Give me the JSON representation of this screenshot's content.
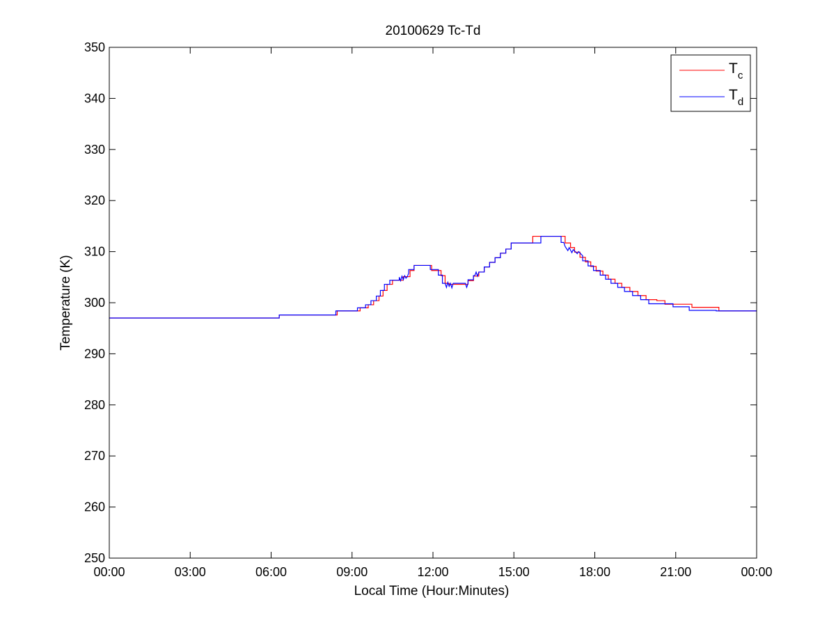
{
  "chart_data": {
    "type": "line",
    "title": "20100629 Tc-Td",
    "xlabel": "Local Time (Hour:Minutes)",
    "ylabel": "Temperature (K)",
    "xlim": [
      0,
      24
    ],
    "ylim": [
      250,
      350
    ],
    "x_unit": "hours (local time)",
    "xticks": [
      0,
      3,
      6,
      9,
      12,
      15,
      18,
      21,
      24
    ],
    "xtick_labels": [
      "00:00",
      "03:00",
      "06:00",
      "09:00",
      "12:00",
      "15:00",
      "18:00",
      "21:00",
      "00:00"
    ],
    "yticks": [
      250,
      260,
      270,
      280,
      290,
      300,
      310,
      320,
      330,
      340,
      350
    ],
    "ytick_labels": [
      "250",
      "260",
      "270",
      "280",
      "290",
      "300",
      "310",
      "320",
      "330",
      "340",
      "350"
    ],
    "grid": false,
    "legend_position": "top-right",
    "series": [
      {
        "name": "Tc",
        "name_main": "T",
        "name_sub": "c",
        "color": "#ff0000",
        "x": [
          0,
          6.3,
          6.3,
          8.45,
          8.45,
          9.3,
          9.3,
          9.6,
          9.6,
          9.8,
          9.8,
          10.0,
          10.0,
          10.15,
          10.15,
          10.3,
          10.3,
          10.5,
          10.5,
          10.9,
          10.9,
          11.15,
          11.15,
          11.3,
          11.3,
          11.95,
          11.95,
          12.3,
          12.3,
          12.45,
          12.45,
          12.6,
          12.6,
          13.3,
          13.3,
          13.5,
          13.5,
          13.7,
          13.7,
          13.9,
          13.9,
          14.1,
          14.1,
          14.3,
          14.3,
          14.5,
          14.5,
          14.7,
          14.7,
          14.9,
          14.9,
          15.0,
          15.0,
          15.7,
          15.7,
          16.2,
          16.2,
          16.9,
          16.9,
          17.1,
          17.1,
          17.25,
          17.25,
          17.45,
          17.45,
          17.65,
          17.65,
          17.85,
          17.85,
          18.05,
          18.05,
          18.3,
          18.3,
          18.5,
          18.5,
          18.75,
          18.75,
          19.0,
          19.0,
          19.3,
          19.3,
          19.6,
          19.6,
          19.9,
          19.9,
          20.3,
          20.3,
          20.6,
          20.6,
          20.95,
          20.95,
          21.6,
          21.6,
          22.6,
          22.6,
          24
        ],
        "y": [
          297.0,
          297.0,
          297.6,
          297.6,
          298.4,
          298.4,
          299.0,
          299.0,
          299.6,
          299.6,
          300.4,
          300.4,
          301.3,
          301.3,
          302.4,
          302.4,
          303.6,
          303.6,
          304.4,
          304.4,
          305.1,
          305.1,
          306.3,
          306.3,
          307.3,
          307.3,
          306.3,
          306.3,
          305.3,
          305.3,
          303.8,
          303.8,
          303.6,
          303.6,
          304.3,
          304.3,
          305.2,
          305.2,
          306.0,
          306.0,
          307.0,
          307.0,
          307.9,
          307.9,
          308.8,
          308.8,
          309.7,
          309.7,
          310.5,
          310.5,
          311.7,
          311.7,
          311.7,
          311.7,
          313.0,
          313.0,
          313.0,
          313.0,
          311.7,
          311.7,
          310.8,
          310.8,
          309.9,
          309.9,
          308.9,
          308.9,
          308.0,
          308.0,
          307.1,
          307.1,
          306.2,
          306.2,
          305.4,
          305.4,
          304.6,
          304.6,
          303.8,
          303.8,
          303.0,
          303.0,
          302.2,
          302.2,
          301.4,
          301.4,
          300.6,
          300.6,
          300.4,
          300.4,
          299.7,
          299.7,
          299.7,
          299.7,
          299.1,
          299.1,
          298.4,
          298.4
        ]
      },
      {
        "name": "Td",
        "name_main": "T",
        "name_sub": "d",
        "color": "#0000ff",
        "x": [
          0,
          6.3,
          6.3,
          8.4,
          8.4,
          9.2,
          9.2,
          9.5,
          9.5,
          9.7,
          9.7,
          9.9,
          9.9,
          10.05,
          10.05,
          10.2,
          10.2,
          10.4,
          10.4,
          10.75,
          10.75,
          10.8,
          10.85,
          10.9,
          10.95,
          11.0,
          11.05,
          11.1,
          11.1,
          11.3,
          11.3,
          11.9,
          11.9,
          12.2,
          12.2,
          12.35,
          12.35,
          12.45,
          12.5,
          12.55,
          12.6,
          12.65,
          12.7,
          12.75,
          12.8,
          13.2,
          13.25,
          13.3,
          13.3,
          13.5,
          13.5,
          13.55,
          13.6,
          13.65,
          13.7,
          13.9,
          13.9,
          14.1,
          14.1,
          14.3,
          14.3,
          14.5,
          14.5,
          14.7,
          14.7,
          14.9,
          14.9,
          15.0,
          15.0,
          16.0,
          16.0,
          16.75,
          16.75,
          16.85,
          16.9,
          17.0,
          17.05,
          17.15,
          17.2,
          17.35,
          17.4,
          17.55,
          17.55,
          17.75,
          17.75,
          17.95,
          17.95,
          18.2,
          18.2,
          18.4,
          18.4,
          18.6,
          18.6,
          18.85,
          18.85,
          19.1,
          19.1,
          19.4,
          19.4,
          19.7,
          19.7,
          20.0,
          20.0,
          20.9,
          20.9,
          21.5,
          21.5,
          22.5,
          22.5,
          24
        ],
        "y": [
          297.0,
          297.0,
          297.6,
          297.6,
          298.4,
          298.4,
          299.0,
          299.0,
          299.6,
          299.6,
          300.4,
          300.4,
          301.3,
          301.3,
          302.4,
          302.4,
          303.6,
          303.6,
          304.4,
          304.4,
          305.0,
          304.3,
          305.2,
          304.5,
          305.3,
          304.8,
          305.1,
          305.8,
          306.5,
          306.5,
          307.3,
          307.3,
          306.5,
          306.5,
          305.4,
          305.4,
          303.8,
          303.8,
          303.0,
          304.0,
          303.2,
          303.8,
          302.9,
          303.8,
          303.8,
          303.8,
          303.0,
          303.8,
          304.5,
          304.5,
          305.3,
          305.3,
          306.0,
          305.2,
          306.0,
          306.0,
          307.0,
          307.0,
          307.9,
          307.9,
          308.8,
          308.8,
          309.7,
          309.7,
          310.5,
          310.5,
          311.7,
          311.7,
          311.7,
          311.7,
          313.0,
          313.0,
          311.8,
          311.8,
          311.0,
          310.2,
          310.8,
          309.8,
          310.4,
          309.6,
          310.0,
          309.2,
          308.2,
          308.2,
          307.2,
          307.2,
          306.3,
          306.3,
          305.4,
          305.4,
          304.6,
          304.6,
          303.8,
          303.8,
          303.0,
          303.0,
          302.2,
          302.2,
          301.4,
          301.4,
          300.6,
          300.6,
          299.8,
          299.8,
          299.2,
          299.2,
          298.5,
          298.5,
          298.4,
          298.4
        ]
      }
    ]
  }
}
